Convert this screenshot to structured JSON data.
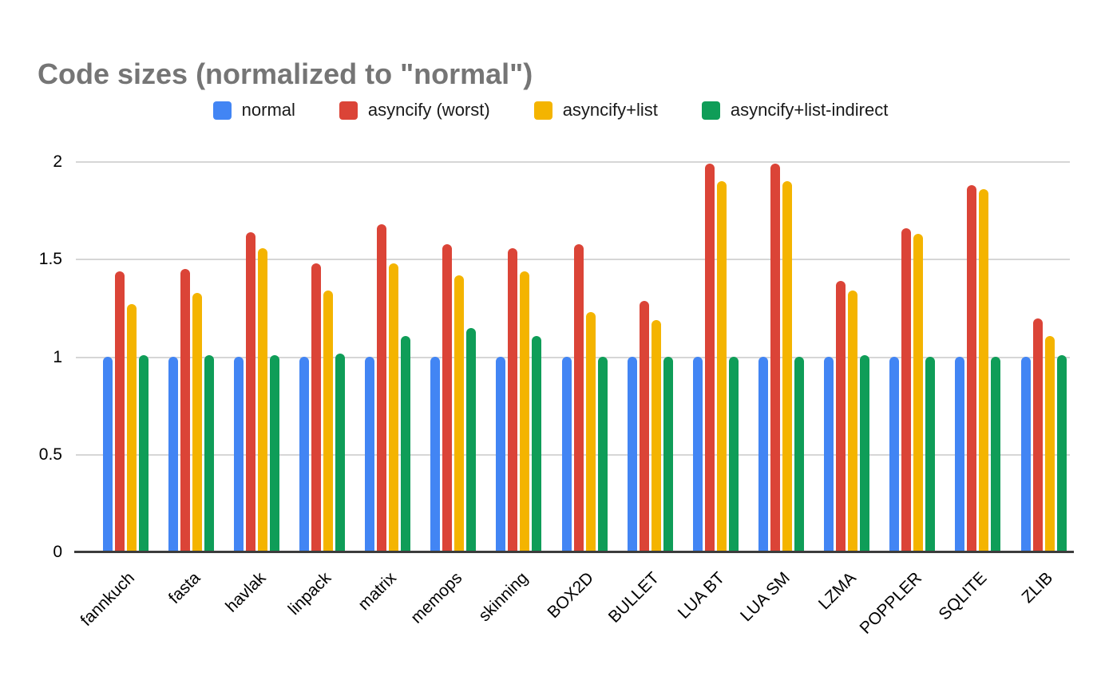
{
  "title": "Code sizes (normalized to \"normal\")",
  "chart_data": {
    "type": "bar",
    "title": "Code sizes (normalized to \"normal\")",
    "title_color": "#757575",
    "background_color": "#ffffff",
    "grid": true,
    "gridline_color": "#d6d6d6",
    "axis_line_color": "#3c3c3c",
    "legend_position": "top",
    "xlabel": "",
    "ylabel": "",
    "ylim": [
      0,
      2
    ],
    "y_ticks": [
      0,
      0.5,
      1,
      1.5,
      2
    ],
    "y_tick_labels": [
      "0",
      "0.5",
      "1",
      "1.5",
      "2"
    ],
    "categories": [
      "fannkuch",
      "fasta",
      "havlak",
      "linpack",
      "matrix",
      "memops",
      "skinning",
      "BOX2D",
      "BULLET",
      "LUA BT",
      "LUA SM",
      "LZMA",
      "POPPLER",
      "SQLITE",
      "ZLIB"
    ],
    "series": [
      {
        "name": "normal",
        "color": "#4285F4",
        "values": [
          1.0,
          1.0,
          1.0,
          1.0,
          1.0,
          1.0,
          1.0,
          1.0,
          1.0,
          1.0,
          1.0,
          1.0,
          1.0,
          1.0,
          1.0
        ]
      },
      {
        "name": "asyncify (worst)",
        "color": "#DB4437",
        "values": [
          1.44,
          1.45,
          1.64,
          1.48,
          1.68,
          1.58,
          1.56,
          1.58,
          1.29,
          1.99,
          1.99,
          1.39,
          1.66,
          1.88,
          1.2
        ]
      },
      {
        "name": "asyncify+list",
        "color": "#F4B400",
        "values": [
          1.27,
          1.33,
          1.56,
          1.34,
          1.48,
          1.42,
          1.44,
          1.23,
          1.19,
          1.9,
          1.9,
          1.34,
          1.63,
          1.86,
          1.11
        ]
      },
      {
        "name": "asyncify+list-indirect",
        "color": "#0F9D58",
        "values": [
          1.01,
          1.01,
          1.01,
          1.02,
          1.11,
          1.15,
          1.11,
          1.0,
          1.0,
          1.0,
          1.0,
          1.01,
          1.0,
          1.0,
          1.01
        ]
      }
    ]
  }
}
